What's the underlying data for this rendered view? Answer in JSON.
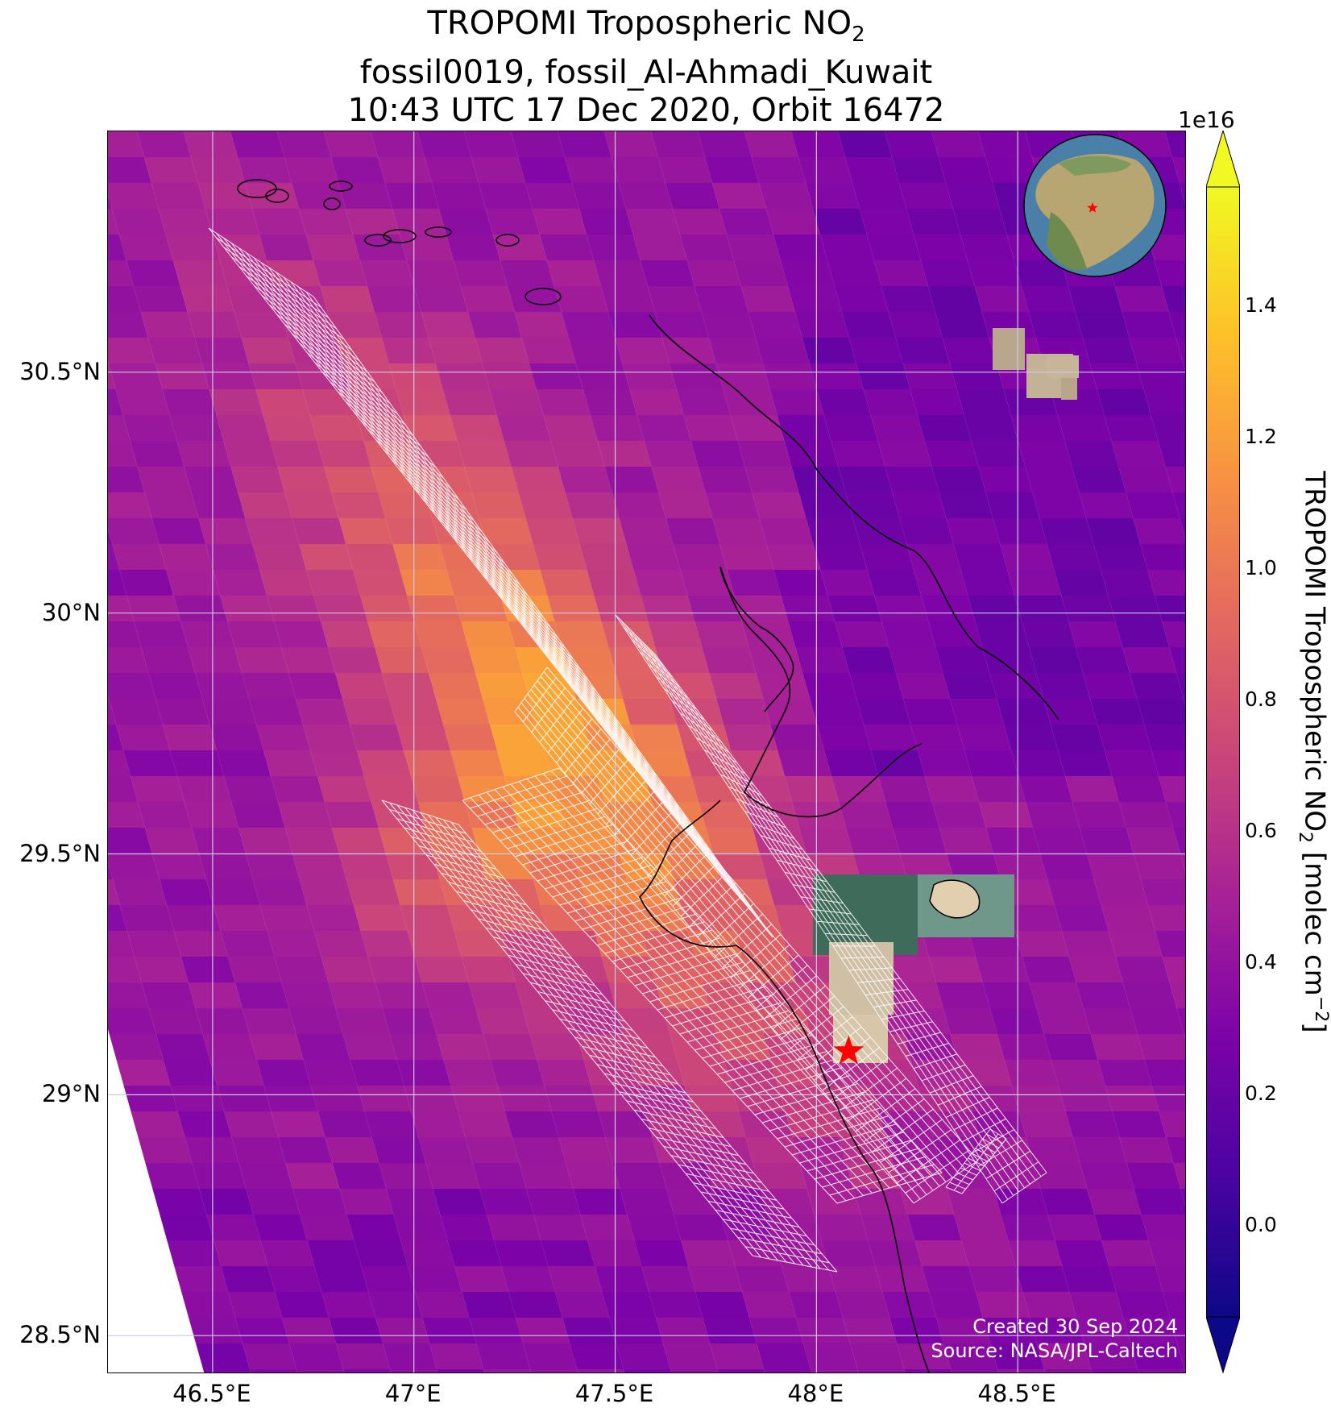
{
  "title": {
    "line1_prefix": "TROPOMI Tropospheric NO",
    "line1_sub": "2",
    "line2": "fossil0019, fossil_Al-Ahmadi_Kuwait",
    "line3": "10:43 UTC 17 Dec 2020, Orbit 16472"
  },
  "axes": {
    "x_ticks": [
      "46.5°E",
      "47°E",
      "47.5°E",
      "48°E",
      "48.5°E"
    ],
    "x_values": [
      46.5,
      47.0,
      47.5,
      48.0,
      48.5
    ],
    "y_ticks": [
      "30.5°N",
      "30°N",
      "29.5°N",
      "29°N",
      "28.5°N"
    ],
    "y_values": [
      30.5,
      30.0,
      29.5,
      29.0,
      28.5
    ],
    "lon_range": [
      46.24,
      48.92
    ],
    "lat_range": [
      28.42,
      31.0
    ],
    "grid": true
  },
  "colorbar": {
    "label_prefix": "TROPOMI Tropospheric NO",
    "label_sub": "2",
    "label_mid": " [molec cm",
    "label_sup": "−2",
    "label_end": "]",
    "multiplier": "1e16",
    "ticks": [
      "1.4",
      "1.2",
      "1.0",
      "0.8",
      "0.6",
      "0.4",
      "0.2",
      "0.0"
    ],
    "tick_values": [
      1.4,
      1.2,
      1.0,
      0.8,
      0.6,
      0.4,
      0.2,
      0.0
    ],
    "range": [
      -0.14,
      1.58
    ],
    "colormap": "plasma",
    "extend": "both"
  },
  "credits": {
    "created": "Created 30 Sep 2024",
    "source": "Source: NASA/JPL-Caltech"
  },
  "marker": {
    "name": "fossil_Al-Ahmadi_Kuwait",
    "lon": 48.08,
    "lat": 29.09,
    "color": "#ff0000",
    "icon": "star-icon"
  },
  "colors": {
    "overlay_grid": "#ffffff",
    "coastline": "#000000",
    "marker": "#ff0000"
  }
}
